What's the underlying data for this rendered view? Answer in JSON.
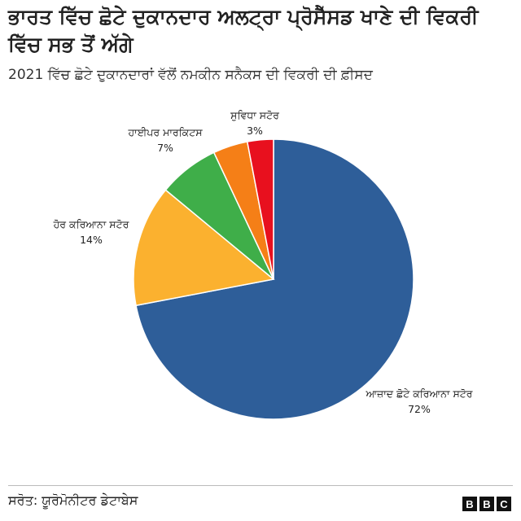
{
  "title": "ਭਾਰਤ ਵਿੱਚ ਛੋਟੇ ਦੁਕਾਨਦਾਰ ਅਲਟ੍ਰਾ ਪ੍ਰੋਸੈੱਸਡ ਖਾਣੇ ਦੀ ਵਿਕਰੀ ਵਿੱਚ ਸਭ ਤੋਂ ਅੱਗੇ",
  "subtitle": "2021 ਵਿੱਚ ਛੋਟੇ ਦੁਕਾਨਦਾਰਾਂ ਵੱਲੋਂ ਨਮਕੀਨ ਸਨੈਕਸ ਦੀ ਵਿਕਰੀ ਦੀ ਫ਼ੀਸਦ",
  "source": "ਸਰੋਤ: ਯੂਰੋਮੋਨੀਟਰ ਡੇਟਾਬੇਸ",
  "logo": [
    "B",
    "B",
    "C"
  ],
  "chart_data": {
    "type": "pie",
    "slices": [
      {
        "label": "ਆਜ਼ਾਦ ਛੋਟੇ ਕਰਿਆਨਾ ਸਟੋਰ",
        "value": 72,
        "value_label": "72%",
        "color": "#2e5e99"
      },
      {
        "label": "ਹੋਰ ਕਰਿਆਨਾ ਸਟੋਰ",
        "value": 14,
        "value_label": "14%",
        "color": "#fbb12f"
      },
      {
        "label": "ਹਾਈਪਰ ਮਾਰਕਿਟਸ",
        "value": 7,
        "value_label": "7%",
        "color": "#3fae49"
      },
      {
        "label": "",
        "value": 4,
        "value_label": "",
        "color": "#f57f17"
      },
      {
        "label": "ਸੁਵਿਧਾ ਸਟੋਰ",
        "value": 3,
        "value_label": "3%",
        "color": "#e8101e"
      }
    ]
  }
}
